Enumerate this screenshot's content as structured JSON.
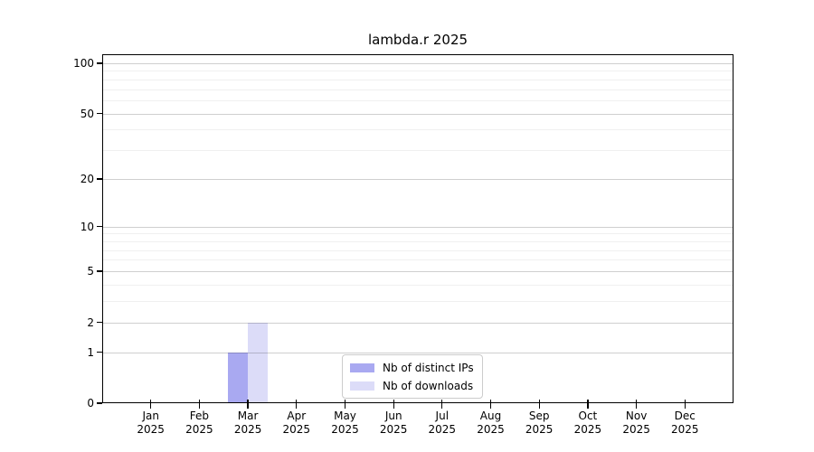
{
  "chart_data": {
    "type": "bar",
    "title": "lambda.r 2025",
    "categories": [
      "Jan",
      "Feb",
      "Mar",
      "Apr",
      "May",
      "Jun",
      "Jul",
      "Aug",
      "Sep",
      "Oct",
      "Nov",
      "Dec"
    ],
    "category_year": "2025",
    "series": [
      {
        "name": "Nb of distinct IPs",
        "color": "#a9a9f1",
        "values": [
          0,
          0,
          1,
          0,
          0,
          0,
          0,
          0,
          0,
          0,
          0,
          0
        ]
      },
      {
        "name": "Nb of downloads",
        "color": "#dcdcf8",
        "values": [
          0,
          0,
          2,
          0,
          0,
          0,
          0,
          0,
          0,
          0,
          0,
          0
        ]
      }
    ],
    "xlabel": "",
    "ylabel": "",
    "y_scale": "log1p",
    "y_major_ticks": [
      0,
      1,
      2,
      5,
      10,
      20,
      50,
      100
    ],
    "y_minor_ticks": [
      3,
      4,
      6,
      7,
      8,
      9,
      30,
      40,
      60,
      70,
      80,
      90
    ],
    "ylim": [
      0,
      113
    ],
    "grid": "horizontal-major-and-minor",
    "legend_position": "lower-center-inside"
  },
  "colors": {
    "background": "#ffffff",
    "spine": "#000000",
    "grid_major": "#cfcfcf",
    "grid_minor": "#efefef",
    "bar_distinct_ips": "#a9a9f1",
    "bar_downloads": "#dcdcf8",
    "text": "#000000",
    "legend_border": "#cccccc"
  }
}
